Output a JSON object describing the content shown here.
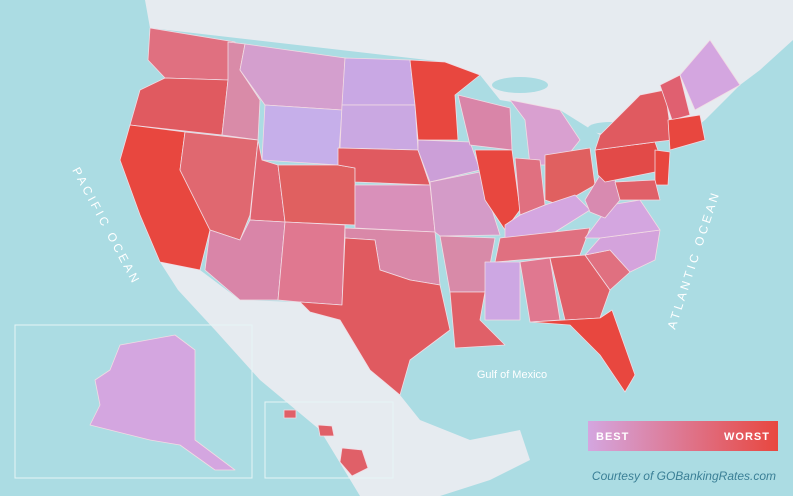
{
  "labels": {
    "pacific": "PACIFIC OCEAN",
    "atlantic": "ATLANTIC OCEAN",
    "gulf": "Gulf of Mexico"
  },
  "legend": {
    "low": "BEST",
    "high": "WORST"
  },
  "credit": "Courtesy of GOBankingRates.com"
}
